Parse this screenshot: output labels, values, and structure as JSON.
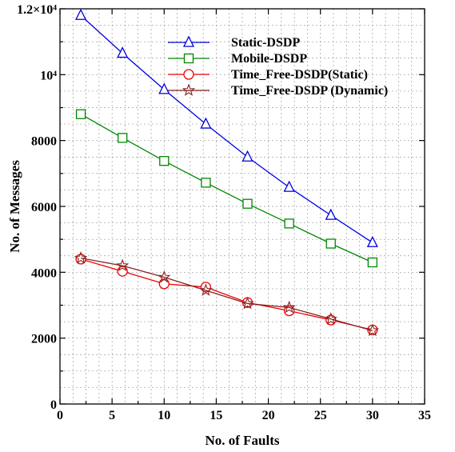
{
  "chart_data": {
    "type": "line",
    "xlabel": "No. of Faults",
    "ylabel": "No. of Messages",
    "xlim": [
      0,
      35
    ],
    "ylim": [
      0,
      12000
    ],
    "x_ticks": [
      0,
      5,
      10,
      15,
      20,
      25,
      30,
      35
    ],
    "x_tick_labels": [
      "0",
      "5",
      "10",
      "15",
      "20",
      "25",
      "30",
      "35"
    ],
    "y_ticks": [
      0,
      2000,
      4000,
      6000,
      8000,
      10000,
      12000
    ],
    "y_tick_labels": [
      "0",
      "2000",
      "4000",
      "6000",
      "8000",
      "10⁴",
      "1.2×10⁴"
    ],
    "grid": true,
    "legend_position": "top-right",
    "x": [
      2,
      6,
      10,
      14,
      18,
      22,
      26,
      30
    ],
    "series": [
      {
        "name": "Static-DSDP",
        "color": "#0000dd",
        "marker": "triangle",
        "values": [
          11800,
          10650,
          9550,
          8500,
          7500,
          6580,
          5730,
          4900
        ]
      },
      {
        "name": "Mobile-DSDP",
        "color": "#008800",
        "marker": "square",
        "values": [
          8800,
          8080,
          7380,
          6720,
          6080,
          5480,
          4870,
          4300
        ]
      },
      {
        "name": "Time_Free-DSDP(Static)",
        "color": "#ee0000",
        "marker": "circle",
        "values": [
          4400,
          4030,
          3650,
          3550,
          3080,
          2830,
          2550,
          2250
        ]
      },
      {
        "name": "Time_Free-DSDP (Dynamic)",
        "color": "#882222",
        "marker": "star",
        "values": [
          4430,
          4200,
          3850,
          3450,
          3050,
          2930,
          2580,
          2230
        ]
      }
    ]
  }
}
